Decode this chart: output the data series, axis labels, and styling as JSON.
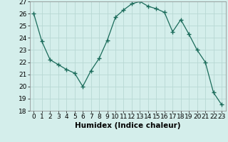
{
  "x": [
    0,
    1,
    2,
    3,
    4,
    5,
    6,
    7,
    8,
    9,
    10,
    11,
    12,
    13,
    14,
    15,
    16,
    17,
    18,
    19,
    20,
    21,
    22,
    23
  ],
  "y": [
    26,
    23.7,
    22.2,
    21.8,
    21.4,
    21.1,
    20.0,
    21.3,
    22.3,
    23.8,
    25.7,
    26.3,
    26.8,
    27.0,
    26.6,
    26.4,
    26.1,
    24.5,
    25.5,
    24.3,
    23.0,
    22.0,
    19.5,
    18.5
  ],
  "line_color": "#1a6b5a",
  "marker": "+",
  "marker_size": 4,
  "marker_lw": 1.0,
  "bg_color": "#d4eeeb",
  "grid_color": "#b8d8d4",
  "xlabel": "Humidex (Indice chaleur)",
  "ylim": [
    18,
    27
  ],
  "xlim": [
    -0.5,
    23.5
  ],
  "xticks": [
    0,
    1,
    2,
    3,
    4,
    5,
    6,
    7,
    8,
    9,
    10,
    11,
    12,
    13,
    14,
    15,
    16,
    17,
    18,
    19,
    20,
    21,
    22,
    23
  ],
  "yticks": [
    18,
    19,
    20,
    21,
    22,
    23,
    24,
    25,
    26,
    27
  ],
  "tick_fontsize": 6.5,
  "xlabel_fontsize": 7.5
}
